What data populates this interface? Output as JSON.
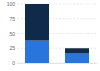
{
  "chart_data": {
    "type": "bar",
    "stacked": true,
    "categories": [
      null,
      null
    ],
    "series": [
      {
        "color": "#2876dd",
        "values": [
          38,
          16
        ]
      },
      {
        "color": "#0f2a4a",
        "values": [
          62,
          9
        ]
      }
    ],
    "ylim": [
      0,
      100
    ],
    "yticks": [
      0,
      25,
      50,
      75,
      100
    ],
    "grid": true,
    "tick_labels": "y"
  }
}
